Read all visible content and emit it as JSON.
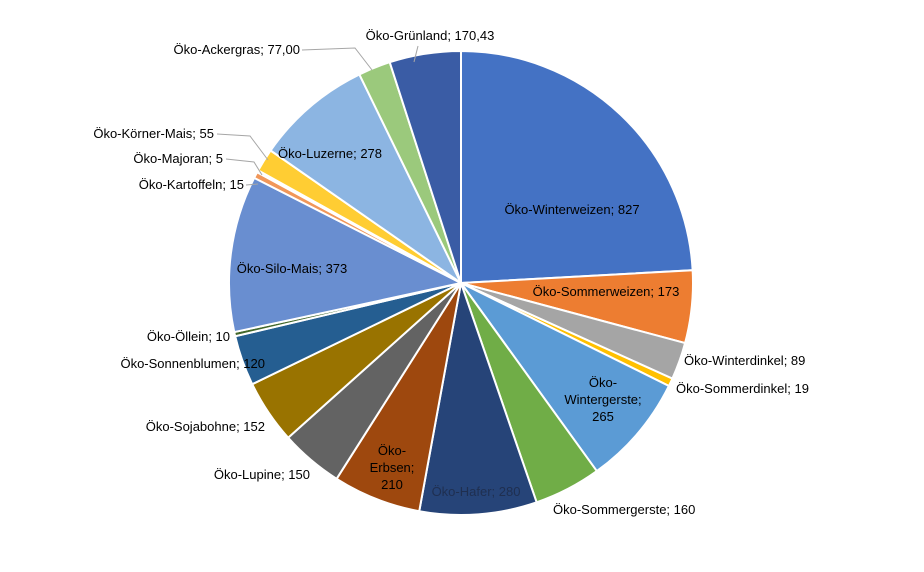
{
  "chart_data": {
    "type": "pie",
    "start_angle_deg": 0,
    "direction": "clockwise",
    "slices": [
      {
        "label": "Öko-Winterweizen; 827",
        "value": 827,
        "color": "#4472c4"
      },
      {
        "label": "Öko-Sommerweizen; 173",
        "value": 173,
        "color": "#ed7d31"
      },
      {
        "label": "Öko-Winterdinkel; 89",
        "value": 89,
        "color": "#a5a5a5"
      },
      {
        "label": "Öko-Sommerdinkel; 19",
        "value": 19,
        "color": "#ffc000"
      },
      {
        "label": "Öko-Wintergerste; 265",
        "value": 265,
        "color": "#5b9bd5"
      },
      {
        "label": "Öko-Sommergerste; 160",
        "value": 160,
        "color": "#70ad47"
      },
      {
        "label": "Öko-Hafer; 280",
        "value": 280,
        "color": "#264478"
      },
      {
        "label": "Öko-Erbsen; 210",
        "value": 210,
        "color": "#9e480e"
      },
      {
        "label": "Öko-Lupine; 150",
        "value": 150,
        "color": "#636363"
      },
      {
        "label": "Öko-Sojabohne; 152",
        "value": 152,
        "color": "#997300"
      },
      {
        "label": "Öko-Sonnenblumen; 120",
        "value": 120,
        "color": "#255e91"
      },
      {
        "label": "Öko-Öllein; 10",
        "value": 10,
        "color": "#43682b"
      },
      {
        "label": "Öko-Silo-Mais; 373",
        "value": 373,
        "color": "#698ed0"
      },
      {
        "label": "Öko-Kartoffeln; 15",
        "value": 15,
        "color": "#f1975a"
      },
      {
        "label": "Öko-Majoran; 5",
        "value": 5,
        "color": "#b7b7b7"
      },
      {
        "label": "Öko-Körner-Mais; 55",
        "value": 55,
        "color": "#ffcd33"
      },
      {
        "label": "Öko-Luzerne; 278",
        "value": 278,
        "color": "#8cb5e2"
      },
      {
        "label": "Öko-Ackergras;  77,00",
        "value": 77.0,
        "color": "#9bc97c"
      },
      {
        "label": "Öko-Grünland; 170,43",
        "value": 170.43,
        "color": "#3a5ca5"
      }
    ]
  }
}
